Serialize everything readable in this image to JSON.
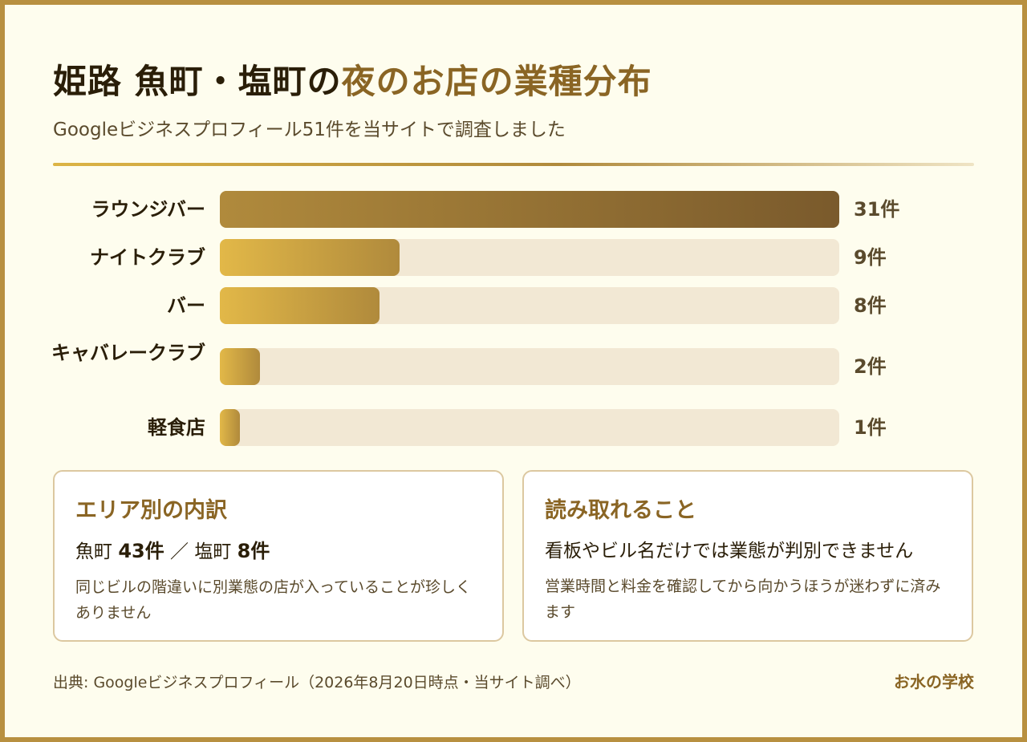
{
  "title": {
    "main": "姫路 魚町・塩町の",
    "accent": "夜のお店の業種分布"
  },
  "subtitle": "Googleビジネスプロフィール51件を当サイトで調査しました",
  "chart_data": {
    "type": "bar",
    "orientation": "horizontal",
    "title": "姫路 魚町・塩町の夜のお店の業種分布",
    "categories": [
      "ラウンジバー",
      "ナイトクラブ",
      "バー",
      "キャバレークラブ",
      "軽食店"
    ],
    "values": [
      31,
      9,
      8,
      2,
      1
    ],
    "value_labels": [
      "31件",
      "9件",
      "8件",
      "2件",
      "1件"
    ],
    "xlim": [
      0,
      31
    ],
    "grid": false,
    "legend": "none"
  },
  "cards": {
    "area": {
      "heading": "エリア別の内訳",
      "uomachi_label": "魚町",
      "uomachi_count": "43件",
      "separator": "／",
      "shiomachi_label": "塩町",
      "shiomachi_count": "8件",
      "note": "同じビルの階違いに別業態の店が入っていることが珍しくありません"
    },
    "insight": {
      "heading": "読み取れること",
      "lead": "看板やビル名だけでは業態が判別できません",
      "note": "営業時間と料金を確認してから向かうほうが迷わずに済みます"
    }
  },
  "footer": {
    "source": "出典: Googleビジネスプロフィール（2026年8月20日時点・当サイト調べ）",
    "brand": "お水の学校"
  },
  "colors": {
    "accent": "#8a6524",
    "bar_top": "#7a5a2c",
    "bar_light": "#e2b848",
    "track": "#f2e8d4",
    "background": "#fefdee",
    "border": "#b89040"
  }
}
